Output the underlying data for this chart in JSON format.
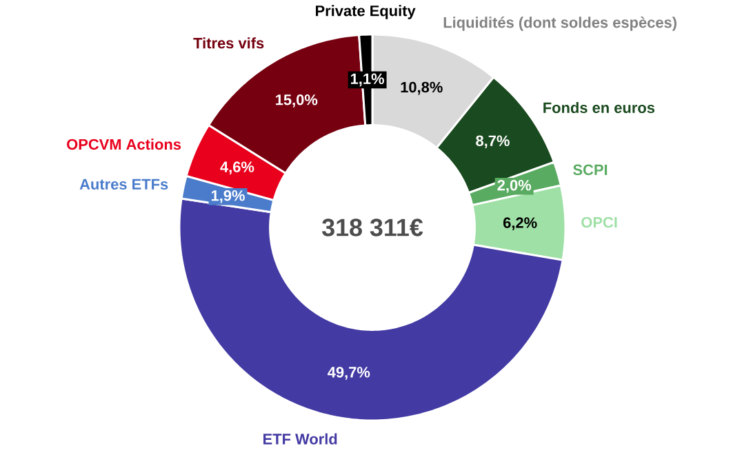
{
  "chart_data": {
    "type": "donut",
    "categories": [
      "Liquidités (dont soldes espèces)",
      "Fonds en euros",
      "SCPI",
      "OPCI",
      "ETF World",
      "Autres ETFs",
      "OPCVM Actions",
      "Titres vifs",
      "Private Equity"
    ],
    "values": [
      10.8,
      8.7,
      2.0,
      6.2,
      49.7,
      1.9,
      4.6,
      15.0,
      1.1
    ],
    "colors": [
      "#d9d9d9",
      "#1a4a1f",
      "#5aab62",
      "#9fe0a6",
      "#433aa3",
      "#4a7ccb",
      "#e8001c",
      "#76000f",
      "#000000"
    ],
    "value_labels": [
      "10,8%",
      "8,7%",
      "2,0%",
      "6,2%",
      "49,7%",
      "1,9%",
      "4,6%",
      "15,0%",
      "1,1%"
    ],
    "annotations": [
      "318 311€"
    ]
  }
}
